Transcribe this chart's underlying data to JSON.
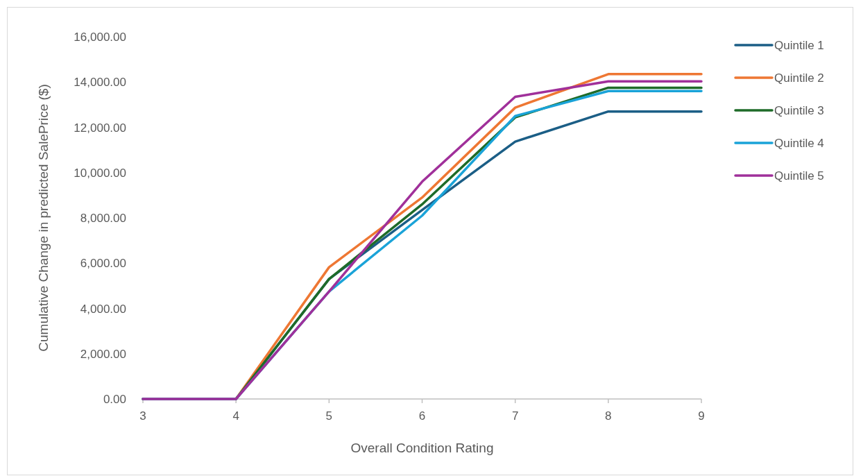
{
  "chart_data": {
    "type": "line",
    "xlabel": "Overall Condition Rating",
    "ylabel": "Cumulative Change in predicted SalePrice ($)",
    "x": [
      3,
      4,
      5,
      6,
      7,
      8,
      9
    ],
    "xlim": [
      3,
      9
    ],
    "xticks": [
      3,
      4,
      5,
      6,
      7,
      8,
      9
    ],
    "ylim": [
      0,
      16000
    ],
    "yticks": [
      {
        "value": 0,
        "label": "0.00"
      },
      {
        "value": 2000,
        "label": "2,000.00"
      },
      {
        "value": 4000,
        "label": "4,000.00"
      },
      {
        "value": 6000,
        "label": "6,000.00"
      },
      {
        "value": 8000,
        "label": "8,000.00"
      },
      {
        "value": 10000,
        "label": "10,000.00"
      },
      {
        "value": 12000,
        "label": "12,000.00"
      },
      {
        "value": 14000,
        "label": "14,000.00"
      },
      {
        "value": 16000,
        "label": "16,000.00"
      }
    ],
    "legend": "right",
    "marker": "none",
    "line_style": "solid",
    "series": [
      {
        "name": "Quintile 1",
        "color": "#1b5e86",
        "values": [
          0,
          0,
          5300,
          8350,
          11370,
          12700,
          12700
        ]
      },
      {
        "name": "Quintile 2",
        "color": "#ee7733",
        "values": [
          0,
          0,
          5820,
          8900,
          12870,
          14350,
          14350
        ]
      },
      {
        "name": "Quintile 3",
        "color": "#1e6b28",
        "values": [
          0,
          0,
          5300,
          8600,
          12440,
          13750,
          13750
        ]
      },
      {
        "name": "Quintile 4",
        "color": "#1aa3d8",
        "values": [
          0,
          0,
          4750,
          8100,
          12500,
          13600,
          13600
        ]
      },
      {
        "name": "Quintile 5",
        "color": "#a0309a",
        "values": [
          0,
          0,
          4750,
          9600,
          13350,
          14030,
          14030
        ]
      }
    ]
  }
}
